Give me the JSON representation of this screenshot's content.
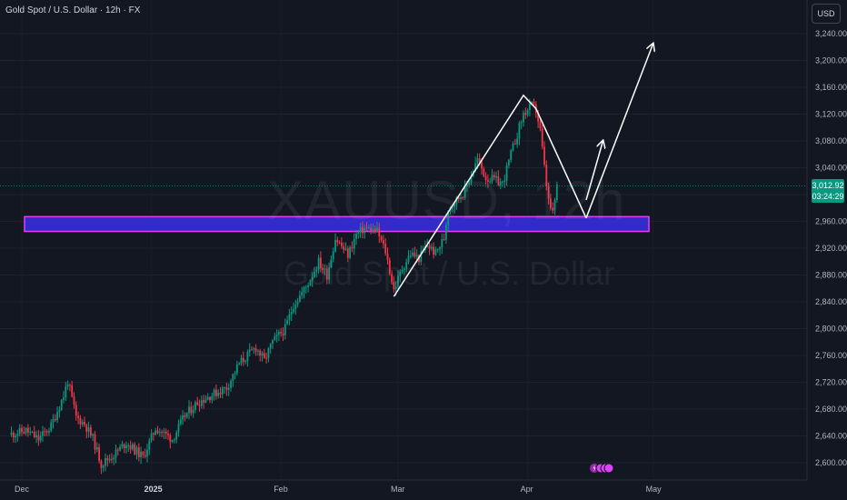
{
  "header": {
    "title": "Gold Spot / U.S. Dollar · 12h · FX",
    "currency_button": "USD"
  },
  "watermark": {
    "symbol": "XAUUSD, 12h",
    "name": "Gold Spot / U.S. Dollar"
  },
  "last_price": {
    "value": "3,012.92",
    "countdown": "03:24:29",
    "color": "#089981"
  },
  "colors": {
    "up": "#089981",
    "down": "#f23645",
    "zone_fill": "#3a2ee8",
    "zone_border": "#e040fb",
    "drawing": "#ffffff"
  },
  "chart_data": {
    "type": "candlestick",
    "symbol": "XAUUSD",
    "interval": "12h",
    "y_axis": {
      "ticks": [
        2600,
        2640,
        2680,
        2720,
        2760,
        2800,
        2840,
        2880,
        2920,
        2960,
        3000,
        3040,
        3080,
        3120,
        3160,
        3200,
        3240
      ],
      "tick_labels": [
        "2,600.00",
        "2,640.00",
        "2,680.00",
        "2,720.00",
        "2,760.00",
        "2,800.00",
        "2,840.00",
        "2,880.00",
        "2,920.00",
        "2,960.00",
        "",
        "3,040.00",
        "3,080.00",
        "3,120.00",
        "3,160.00",
        "3,200.00",
        "3,240.00"
      ],
      "range": [
        2585,
        3260
      ]
    },
    "x_axis": {
      "ticks": [
        {
          "label": "Dec",
          "date": "2024-12-01",
          "bold": false
        },
        {
          "label": "2025",
          "date": "2025-01-01",
          "bold": true
        },
        {
          "label": "Feb",
          "date": "2025-02-01",
          "bold": false
        },
        {
          "label": "Mar",
          "date": "2025-03-01",
          "bold": false
        },
        {
          "label": "Apr",
          "date": "2025-04-01",
          "bold": false
        },
        {
          "label": "May",
          "date": "2025-05-01",
          "bold": false
        }
      ]
    },
    "price_path": [
      [
        "2024-11-28",
        2642
      ],
      [
        "2024-12-02",
        2648
      ],
      [
        "2024-12-05",
        2635
      ],
      [
        "2024-12-08",
        2655
      ],
      [
        "2024-12-11",
        2700
      ],
      [
        "2024-12-12",
        2722
      ],
      [
        "2024-12-14",
        2668
      ],
      [
        "2024-12-16",
        2658
      ],
      [
        "2024-12-18",
        2636
      ],
      [
        "2024-12-20",
        2598
      ],
      [
        "2024-12-23",
        2612
      ],
      [
        "2024-12-26",
        2630
      ],
      [
        "2024-12-30",
        2608
      ],
      [
        "2025-01-02",
        2652
      ],
      [
        "2025-01-06",
        2635
      ],
      [
        "2025-01-09",
        2670
      ],
      [
        "2025-01-12",
        2690
      ],
      [
        "2025-01-15",
        2700
      ],
      [
        "2025-01-19",
        2712
      ],
      [
        "2025-01-22",
        2748
      ],
      [
        "2025-01-26",
        2772
      ],
      [
        "2025-01-28",
        2752
      ],
      [
        "2025-01-30",
        2780
      ],
      [
        "2025-02-02",
        2800
      ],
      [
        "2025-02-04",
        2836
      ],
      [
        "2025-02-07",
        2862
      ],
      [
        "2025-02-10",
        2900
      ],
      [
        "2025-02-12",
        2880
      ],
      [
        "2025-02-14",
        2935
      ],
      [
        "2025-02-17",
        2910
      ],
      [
        "2025-02-19",
        2940
      ],
      [
        "2025-02-21",
        2950
      ],
      [
        "2025-02-24",
        2945
      ],
      [
        "2025-02-26",
        2915
      ],
      [
        "2025-02-28",
        2858
      ],
      [
        "2025-03-02",
        2890
      ],
      [
        "2025-03-04",
        2912
      ],
      [
        "2025-03-06",
        2905
      ],
      [
        "2025-03-08",
        2925
      ],
      [
        "2025-03-10",
        2912
      ],
      [
        "2025-03-12",
        2935
      ],
      [
        "2025-03-13",
        2980
      ],
      [
        "2025-03-15",
        2992
      ],
      [
        "2025-03-17",
        3006
      ],
      [
        "2025-03-19",
        3038
      ],
      [
        "2025-03-20",
        3052
      ],
      [
        "2025-03-22",
        3025
      ],
      [
        "2025-03-24",
        3022
      ],
      [
        "2025-03-26",
        3016
      ],
      [
        "2025-03-28",
        3060
      ],
      [
        "2025-03-31",
        3120
      ],
      [
        "2025-04-02",
        3132
      ],
      [
        "2025-04-03",
        3126
      ],
      [
        "2025-04-04",
        3095
      ],
      [
        "2025-04-05",
        3040
      ],
      [
        "2025-04-06",
        2990
      ],
      [
        "2025-04-07",
        2970
      ],
      [
        "2025-04-08",
        3012.92
      ]
    ],
    "support_zone": {
      "low": 2945,
      "high": 2967,
      "from": "2024-12-01",
      "to": "2025-04-30"
    },
    "annotations": [
      {
        "type": "line",
        "points": [
          [
            "2025-02-28",
            2848
          ],
          [
            "2025-03-31",
            3148
          ],
          [
            "2025-04-03",
            3128
          ],
          [
            "2025-04-15",
            2965
          ]
        ]
      },
      {
        "type": "arrow",
        "points": [
          [
            "2025-04-15",
            2992
          ],
          [
            "2025-04-19",
            3080
          ]
        ]
      },
      {
        "type": "arrow",
        "points": [
          [
            "2025-04-15",
            2965
          ],
          [
            "2025-05-01",
            3225
          ]
        ]
      }
    ]
  }
}
